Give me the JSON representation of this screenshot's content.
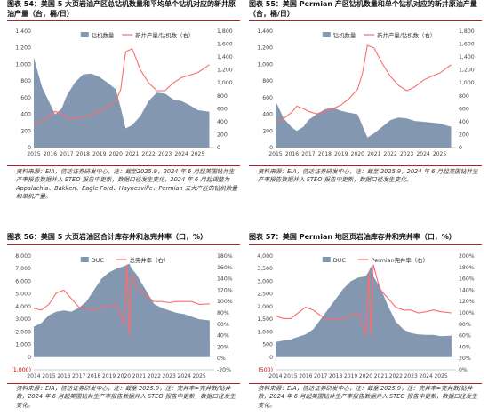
{
  "panels": [
    {
      "title": "图表 54：美国 5 大页岩油产区总钻机数量和平均单个钻机对应的新井原油产量（台，桶/日）",
      "source": "资料来源：EIA，信达证券研发中心，注：截至2025.9，2024 年 6 月起美国钻井生产率报告数据并入 STEO 报告中更新，数据口径发生变化，2024 年 6 月起调整为 Appalachia、Bakken、Eagle Ford、Haynesville、Permian 五大产区的钻机数量和单机产量。"
    },
    {
      "title": "图表 55：美国 Permian 产区钻机数量和单个钻机对应的新井原油产量（台，桶/日）",
      "source": "资料来源：EIA，信达证券研发中心，注：截至 2025.9，2024 年 6 月起美国钻井生产率报告数据并入 STEO 报告中更新，数据口径发生变化。"
    },
    {
      "title": "图表 56：美国 5 大页岩油区合计库存井和总完井率（口，%）",
      "source": "资料来源：EIA，信达证券研发中心，注：截至 2025.9，注：完井率=完井数/钻井数，2024 年 6 月起美国钻井生产率报告数据并入 STEO 报告中更新，数据口径发生变化。"
    },
    {
      "title": "图表 57：美国 Permian 地区页岩油库存井和完井率（口，%）",
      "source": "资料来源：EIA，信达证券研发中心，注：截至 2025.9，注：完井率=完井数/钻井数，2024 年 6 月起美国钻井生产率报告数据并入 STEO 报告中更新，数据口径发生变化。"
    }
  ],
  "chart_data": [
    {
      "type": "area",
      "x": [
        2015,
        2015.5,
        2016,
        2016.3,
        2016.7,
        2017,
        2017.5,
        2018,
        2018.5,
        2019,
        2019.5,
        2020,
        2020.3,
        2020.6,
        2021,
        2021.5,
        2022,
        2022.5,
        2023,
        2023.5,
        2024,
        2024.5,
        2025,
        2025.7
      ],
      "xticks": [
        "2015",
        "2016",
        "2017",
        "2018",
        "2019",
        "2020",
        "2021",
        "2022",
        "2023",
        "2024",
        "2025"
      ],
      "yticks_left": [
        "0",
        "200",
        "400",
        "600",
        "800",
        "1,000",
        "1,200",
        "1,400"
      ],
      "yticks_right": [
        "0",
        "200",
        "400",
        "600",
        "800",
        "1,000",
        "1,200",
        "1,400",
        "1,600",
        "1,800"
      ],
      "ylim_left": [
        0,
        1400
      ],
      "ylim_right": [
        0,
        1800
      ],
      "grid": false,
      "legend": "top-center",
      "series": [
        {
          "name": "钻机数量",
          "axis": "left",
          "color": "#8497b0",
          "values": [
            1080,
            730,
            520,
            400,
            470,
            620,
            780,
            880,
            890,
            850,
            780,
            700,
            480,
            230,
            270,
            380,
            560,
            660,
            650,
            580,
            560,
            510,
            450,
            430
          ]
        },
        {
          "name": "新井产量/钻机数（右）",
          "axis": "right",
          "color": "#ff6b6b",
          "values": [
            340,
            420,
            480,
            560,
            520,
            470,
            440,
            480,
            500,
            560,
            620,
            720,
            900,
            1480,
            1530,
            1200,
            1000,
            880,
            880,
            1000,
            1080,
            1120,
            1160,
            1280
          ]
        }
      ]
    },
    {
      "type": "area",
      "x": [
        2015,
        2015.5,
        2016,
        2016.3,
        2016.7,
        2017,
        2017.5,
        2018,
        2018.5,
        2019,
        2019.5,
        2020,
        2020.3,
        2020.6,
        2021,
        2021.5,
        2022,
        2022.5,
        2023,
        2023.5,
        2024,
        2024.5,
        2025,
        2025.7
      ],
      "xticks": [
        "2015",
        "2016",
        "2017",
        "2018",
        "2019",
        "2020",
        "2021",
        "2022",
        "2023",
        "2024",
        "2025"
      ],
      "yticks_left": [
        "0",
        "200",
        "400",
        "600",
        "800",
        "1,000",
        "1,200",
        "1,400"
      ],
      "yticks_right": [
        "0",
        "200",
        "400",
        "600",
        "800",
        "1,000",
        "1,200",
        "1,400",
        "1,600",
        "1,800"
      ],
      "ylim_left": [
        0,
        1400
      ],
      "ylim_right": [
        0,
        1800
      ],
      "grid": false,
      "legend": "top-center",
      "series": [
        {
          "name": "钻机数量",
          "axis": "left",
          "color": "#8497b0",
          "values": [
            560,
            350,
            240,
            200,
            250,
            330,
            400,
            460,
            480,
            440,
            420,
            400,
            260,
            120,
            170,
            250,
            330,
            360,
            350,
            320,
            310,
            300,
            290,
            250
          ]
        },
        {
          "name": "新井产量/钻机数（右）",
          "axis": "right",
          "color": "#ff6b6b",
          "values": [
            380,
            450,
            550,
            640,
            600,
            560,
            520,
            560,
            600,
            660,
            760,
            900,
            1150,
            1580,
            1540,
            1300,
            1100,
            960,
            880,
            940,
            1040,
            1100,
            1150,
            1280
          ]
        }
      ]
    },
    {
      "type": "area",
      "x": [
        2014,
        2014.5,
        2015,
        2015.5,
        2016,
        2016.5,
        2017,
        2017.5,
        2018,
        2018.5,
        2019,
        2019.5,
        2020,
        2020.2,
        2020.35,
        2020.5,
        2020.8,
        2021,
        2021.5,
        2022,
        2022.5,
        2023,
        2023.5,
        2024,
        2024.5,
        2025,
        2025.7
      ],
      "xticks": [
        "2014",
        "2015",
        "2016",
        "2017",
        "2018",
        "2019",
        "2020",
        "2021",
        "2022",
        "2023",
        "2024",
        "2025"
      ],
      "yticks_left": [
        "(1,000)",
        "0",
        "1,000",
        "2,000",
        "3,000",
        "4,000",
        "5,000",
        "6,000",
        "7,000",
        "8,000"
      ],
      "yticks_right": [
        "-20%",
        "0%",
        "20%",
        "40%",
        "60%",
        "80%",
        "100%",
        "120%",
        "140%",
        "160%",
        "180%"
      ],
      "ylim_left": [
        -1000,
        8000
      ],
      "ylim_right": [
        -0.2,
        1.8
      ],
      "grid": false,
      "legend": "top-center",
      "series": [
        {
          "name": "DUC",
          "axis": "left",
          "color": "#8497b0",
          "values": [
            2400,
            2700,
            3300,
            3600,
            3700,
            3600,
            3900,
            4400,
            5300,
            6200,
            6700,
            7000,
            7200,
            7300,
            7400,
            7000,
            6600,
            6200,
            5200,
            4200,
            3900,
            3700,
            3500,
            3400,
            3200,
            3000,
            2900
          ]
        },
        {
          "name": "总完井率（右）",
          "axis": "right",
          "color": "#ff6b6b",
          "values": [
            0.88,
            0.85,
            0.95,
            1.15,
            1.2,
            1.05,
            0.9,
            0.88,
            0.85,
            0.9,
            0.92,
            0.95,
            0.6,
            1.65,
            0.4,
            1.45,
            1.3,
            1.2,
            1.1,
            1.0,
            1.0,
            0.98,
            1.0,
            1.0,
            1.0,
            0.95,
            0.96
          ]
        }
      ]
    },
    {
      "type": "area",
      "x": [
        2014,
        2014.5,
        2015,
        2015.5,
        2016,
        2016.5,
        2017,
        2017.5,
        2018,
        2018.5,
        2019,
        2019.5,
        2020,
        2020.2,
        2020.35,
        2020.5,
        2020.8,
        2021,
        2021.5,
        2022,
        2022.5,
        2023,
        2023.5,
        2024,
        2024.5,
        2025,
        2025.7
      ],
      "xticks": [
        "2014",
        "2015",
        "2016",
        "2017",
        "2018",
        "2019",
        "2020",
        "2021",
        "2022",
        "2023",
        "2024",
        "2025"
      ],
      "yticks_left": [
        "(500)",
        "0",
        "500",
        "1,000",
        "1,500",
        "2,000",
        "2,500",
        "3,000",
        "3,500",
        "4,000"
      ],
      "yticks_right": [
        "0%",
        "20%",
        "40%",
        "60%",
        "80%",
        "100%",
        "120%",
        "140%",
        "160%",
        "180%",
        "200%"
      ],
      "ylim_left": [
        -500,
        4000
      ],
      "ylim_right": [
        0,
        2.0
      ],
      "grid": false,
      "legend": "top-center",
      "series": [
        {
          "name": "DUC",
          "axis": "left",
          "color": "#8497b0",
          "values": [
            600,
            650,
            700,
            800,
            900,
            1100,
            1500,
            1900,
            2300,
            2700,
            3000,
            3150,
            3200,
            3400,
            3600,
            3200,
            2900,
            2700,
            2000,
            1400,
            1100,
            950,
            900,
            880,
            880,
            830,
            850
          ]
        },
        {
          "name": "Permian完井率（右）",
          "axis": "right",
          "color": "#ff6b6b",
          "values": [
            0.95,
            0.9,
            0.9,
            1.0,
            1.1,
            1.05,
            0.95,
            0.88,
            0.9,
            0.9,
            0.95,
            1.0,
            0.6,
            1.7,
            0.6,
            1.85,
            1.55,
            1.4,
            1.25,
            1.1,
            1.05,
            1.05,
            1.0,
            1.02,
            1.05,
            1.02,
            1.0
          ]
        }
      ]
    }
  ]
}
